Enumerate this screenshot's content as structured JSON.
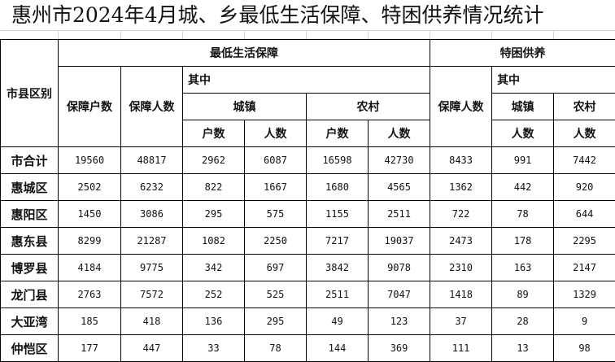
{
  "title": "惠州市2024年4月城、乡最低生活保障、特困供养情况统计",
  "header": {
    "region": "市县区别",
    "dibao": "最低生活保障",
    "tekun": "特困供养",
    "households": "保障户数",
    "persons": "保障人数",
    "among": "其中",
    "urban": "城镇",
    "rural": "农村",
    "hu": "户数",
    "ren": "人数"
  },
  "rows": [
    {
      "name": "市合计",
      "values": [
        "19560",
        "48817",
        "2962",
        "6087",
        "16598",
        "42730",
        "8433",
        "991",
        "7442"
      ]
    },
    {
      "name": "惠城区",
      "values": [
        "2502",
        "6232",
        "822",
        "1667",
        "1680",
        "4565",
        "1362",
        "442",
        "920"
      ]
    },
    {
      "name": "惠阳区",
      "values": [
        "1450",
        "3086",
        "295",
        "575",
        "1155",
        "2511",
        "722",
        "78",
        "644"
      ]
    },
    {
      "name": "惠东县",
      "values": [
        "8299",
        "21287",
        "1082",
        "2250",
        "7217",
        "19037",
        "2473",
        "178",
        "2295"
      ]
    },
    {
      "name": "博罗县",
      "values": [
        "4184",
        "9775",
        "342",
        "697",
        "3842",
        "9078",
        "2310",
        "163",
        "2147"
      ]
    },
    {
      "name": "龙门县",
      "values": [
        "2763",
        "7572",
        "252",
        "525",
        "2511",
        "7047",
        "1418",
        "89",
        "1329"
      ]
    },
    {
      "name": "大亚湾",
      "values": [
        "185",
        "418",
        "136",
        "295",
        "49",
        "123",
        "37",
        "28",
        "9"
      ]
    },
    {
      "name": "仲恺区",
      "values": [
        "177",
        "447",
        "33",
        "78",
        "144",
        "369",
        "111",
        "13",
        "98"
      ]
    }
  ]
}
